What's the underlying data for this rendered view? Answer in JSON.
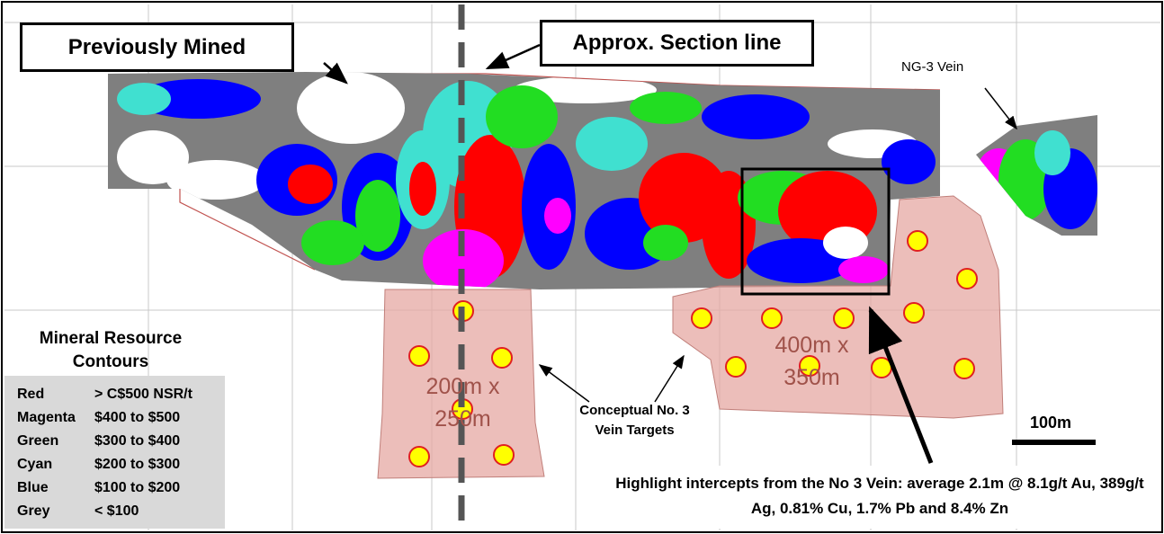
{
  "callouts": {
    "previously_mined": "Previously Mined",
    "section_line": "Approx. Section line",
    "ng3_vein": "NG-3 Vein"
  },
  "legend": {
    "title": "Mineral Resource Contours",
    "rows": [
      {
        "name": "Red",
        "range": "> C$500 NSR/t"
      },
      {
        "name": "Magenta",
        "range": "$400 to $500"
      },
      {
        "name": "Green",
        "range": "$300 to $400"
      },
      {
        "name": "Cyan",
        "range": "$200 to $300"
      },
      {
        "name": "Blue",
        "range": "$100 to $200"
      },
      {
        "name": "Grey",
        "range": "< $100"
      }
    ]
  },
  "targets": {
    "label": "Conceptual No. 3 Vein Targets",
    "left_size": "200m x 250m",
    "right_size": "400m x 350m"
  },
  "scale_bar": "100m",
  "highlight": "Highlight intercepts from the No 3 Vein: average 2.1m @ 8.1g/t Au, 389g/t Ag, 0.81% Cu, 1.7% Pb and 8.4% Zn"
}
